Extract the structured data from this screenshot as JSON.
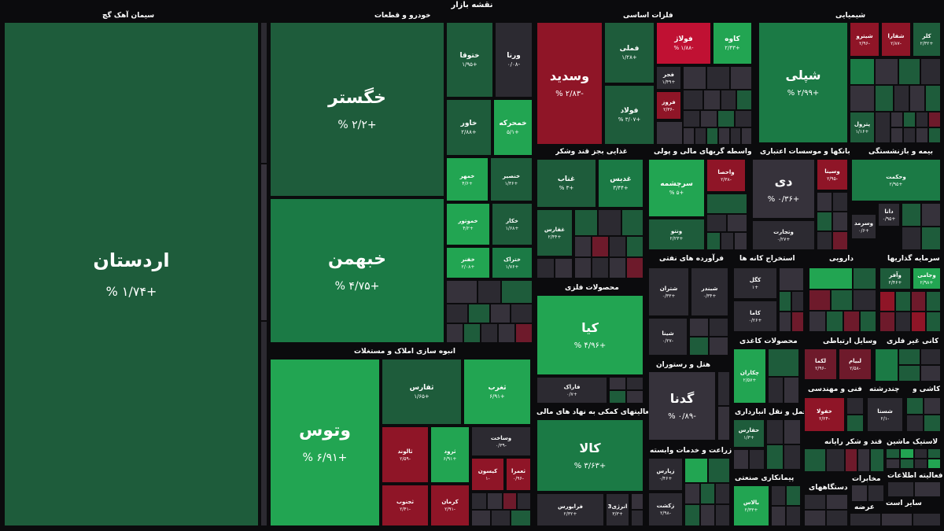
{
  "map_title": "نقشه بازار",
  "sectors": {
    "cement": "سیمان آهک گچ",
    "auto": "خودرو و قطعات",
    "metals": "فلزات اساسی",
    "chemical": "شیمیایی",
    "construction": "انبوه سازی املاک و مستغلات",
    "food": "غذایی بجز قند وشکر",
    "financial": "واسطه گریهای مالی و پولی",
    "banks": "بانکها و موسسات اعتباری",
    "insurance": "بیمه و بازنشستگی",
    "refinery": "فرآورده های نفتی",
    "mining": "استخراج کانه ها",
    "pharma": "دارویی",
    "investment": "سرمایه گذاریها",
    "metal_products": "محصولات فلزی",
    "paper": "محصولات کاغذی",
    "telecom": "وسایل ارتباطی",
    "non_metal": "کانی غیر فلزی",
    "hotel": "هتل و رستوران",
    "tech": "فنی و مهندسی",
    "multi": "چندرشته",
    "tile": "کاشی و",
    "financial_aux": "فعالیتهای کمکی به نهاد های مالی",
    "transport": "حمل و نقل انبارداری",
    "agri": "زراعت و خدمات وابسته",
    "computer": "رایانه",
    "sugar": "قند و شکر",
    "plastic": "لاستیک",
    "machinery": "ماشین",
    "contracting": "پیمانکاری صنعتی",
    "devices": "دستگاههای",
    "communication": "مخابرات",
    "information": "اطلاعات",
    "activities": "فعالیته",
    "supply": "عرضه",
    "other": "سایر است"
  },
  "tiles": {
    "ardestan": {
      "name": "اردستان",
      "pct": "+۱/۷۴ %"
    },
    "khegostar": {
      "name": "خگستر",
      "pct": "+۲/۲ %"
    },
    "khebahman": {
      "name": "خبهمن",
      "pct": "+۴/۷۵ %"
    },
    "khetooqa": {
      "name": "ختوقا",
      "pct": "+۱/۹۵"
    },
    "varna": {
      "name": "ورنا",
      "pct": "-۰/۰۸"
    },
    "khavar": {
      "name": "خاور",
      "pct": "+۲/۸۸"
    },
    "khemharkeh": {
      "name": "خمحرکه",
      "pct": "+۵/۱"
    },
    "khemehr": {
      "name": "خمهر",
      "pct": "+۴/۶"
    },
    "khensir": {
      "name": "خنصیر",
      "pct": "+۱/۳۶"
    },
    "khemotor": {
      "name": "خموتور",
      "pct": "+۴/۲"
    },
    "khekar": {
      "name": "خکار",
      "pct": "+۱/۶۸"
    },
    "khefar": {
      "name": "خفنر",
      "pct": "+۲/۰۸"
    },
    "khetrak": {
      "name": "ختراک",
      "pct": "+۱/۷۶"
    },
    "vasadid": {
      "name": "وسدید",
      "pct": "-۲/۸۳ %"
    },
    "femli": {
      "name": "فملی",
      "pct": "+۱/۲۸"
    },
    "fajr": {
      "name": "فجر",
      "pct": "+۱/۴۹"
    },
    "foolad": {
      "name": "فولاد",
      "pct": "+۳/۰۷ %"
    },
    "farooz": {
      "name": "فروز",
      "pct": "-۲/۳۶"
    },
    "foolazh": {
      "name": "فولاژ",
      "pct": "-۱/۸۸ %"
    },
    "kave": {
      "name": "کاوه",
      "pct": "+۲/۴۳"
    },
    "shepli": {
      "name": "شپلی",
      "pct": "+۲/۹۹ %"
    },
    "kalor": {
      "name": "کلر",
      "pct": "+۲/۳۲"
    },
    "shafara": {
      "name": "شفارا",
      "pct": "-۲/۸۷"
    },
    "shetoro": {
      "name": "شیترو",
      "pct": "-۲/۹۶"
    },
    "petrol": {
      "name": "پترول",
      "pct": "+۱/۱۶"
    },
    "ghenab": {
      "name": "غناب",
      "pct": "+۳ %"
    },
    "ghedis": {
      "name": "غدیس",
      "pct": "+۳/۴۴"
    },
    "ghefars": {
      "name": "غفارس",
      "pct": "+۲/۴۴"
    },
    "sarcheshmeh": {
      "name": "سرچشمه",
      "pct": "+۵ %"
    },
    "vahesna": {
      "name": "واحصا",
      "pct": "-۲/۳۸"
    },
    "vanto": {
      "name": "ونتو",
      "pct": "+۲/۲۳"
    },
    "di": {
      "name": "دی",
      "pct": "+۰/۳۶ %"
    },
    "vasina": {
      "name": "وسینا",
      "pct": "-۲/۹۵"
    },
    "vetejarat": {
      "name": "وتجارت",
      "pct": "+۰/۲۷"
    },
    "vehekmat": {
      "name": "وحکمت",
      "pct": "+۲/۹۵"
    },
    "dana": {
      "name": "دانا",
      "pct": "+۰/۹۵"
    },
    "vasarmad": {
      "name": "وسرمد",
      "pct": "+۰/۶"
    },
    "shiran": {
      "name": "شتران",
      "pct": "+۰/۳۳"
    },
    "shebandar": {
      "name": "شبندر",
      "pct": "+۰/۳۴"
    },
    "shina": {
      "name": "شینا",
      "pct": "-۰/۲۷"
    },
    "kegol": {
      "name": "کگل",
      "pct": "+۱"
    },
    "kama": {
      "name": "کاما",
      "pct": "+۰/۲۶"
    },
    "vajami": {
      "name": "وجامی",
      "pct": "+۲/۹۸"
    },
    "vafar": {
      "name": "وآفر",
      "pct": "+۲/۴۶"
    },
    "kaya": {
      "name": "کیا",
      "pct": "+۴/۹۶ %"
    },
    "farak": {
      "name": "فاراک",
      "pct": "+۰/۷"
    },
    "chekaran": {
      "name": "چکاران",
      "pct": "+۲/۵۷"
    },
    "lekama": {
      "name": "لکما",
      "pct": "-۲/۹۶"
    },
    "lebiam": {
      "name": "لبیام",
      "pct": "-۲/۵۸"
    },
    "gedna": {
      "name": "گدنا",
      "pct": "-۰/۸۹ %"
    },
    "vatoos": {
      "name": "وتوس",
      "pct": "+۶/۹۱ %"
    },
    "safars": {
      "name": "ثفارس",
      "pct": "+۱/۶۵"
    },
    "saghrab": {
      "name": "ثغرب",
      "pct": "+۶/۹۱"
    },
    "sevakht": {
      "name": "وساخت",
      "pct": "-۰/۳۹"
    },
    "salvand": {
      "name": "ثالوند",
      "pct": "-۲/۵۹"
    },
    "sarvod": {
      "name": "ثرود",
      "pct": "+۶/۹۱"
    },
    "kisun": {
      "name": "کیسون",
      "pct": "-۱"
    },
    "tamra": {
      "name": "ثعمرا",
      "pct": "-۰/۹۶"
    },
    "sejnob": {
      "name": "ثجنوب",
      "pct": "-۲/۴۱"
    },
    "kerman": {
      "name": "کرمان",
      "pct": "-۲/۹۱"
    },
    "kala": {
      "name": "کالا",
      "pct": "+۳/۶۳ %"
    },
    "faraborse": {
      "name": "فرابورس",
      "pct": "+۲/۳۲"
    },
    "enerzhi": {
      "name": "انرژی3",
      "pct": "+۳/۳"
    },
    "khefola": {
      "name": "خفولا",
      "pct": "-۲/۲۴"
    },
    "shasta": {
      "name": "شستا",
      "pct": "-۲/۱"
    },
    "hafars": {
      "name": "حفارس",
      "pct": "+۱/۳"
    },
    "zepars": {
      "name": "زپارس",
      "pct": "+۰/۴۶"
    },
    "zeksht": {
      "name": "زکشت",
      "pct": "-۲/۹۸"
    },
    "bahas": {
      "name": "بالاس",
      "pct": "+۲/۳۳"
    }
  }
}
